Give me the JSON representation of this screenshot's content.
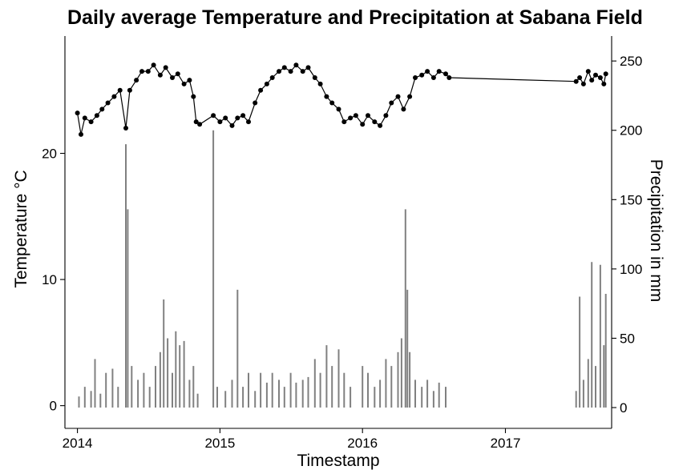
{
  "chart_data": {
    "type": "line",
    "title": "Daily average Temperature and Precipitation at Sabana Field",
    "xlabel": "Timestamp",
    "ylabel": "Temperature °C",
    "y2label": "Precipitation in mm",
    "x_ticks": [
      "2014",
      "2015",
      "2016",
      "2017"
    ],
    "y_ticks": [
      0,
      10,
      20
    ],
    "y2_ticks": [
      0,
      50,
      100,
      150,
      200,
      250
    ],
    "xlim": [
      "2013-11-30",
      "2017-09-30"
    ],
    "ylim": [
      -1.8,
      29.3
    ],
    "y2lim": [
      -15,
      268
    ],
    "grid": false,
    "legend": "none",
    "colors": {
      "temperature": "#000000",
      "precipitation": "#808080"
    },
    "series": [
      {
        "type": "line",
        "axis": "left",
        "points": [
          [
            "2014-01-01",
            23.2
          ],
          [
            "2014-01-10",
            21.5
          ],
          [
            "2014-01-20",
            22.8
          ],
          [
            "2014-02-05",
            22.5
          ],
          [
            "2014-02-20",
            23.0
          ],
          [
            "2014-03-05",
            23.5
          ],
          [
            "2014-03-20",
            24.0
          ],
          [
            "2014-04-05",
            24.5
          ],
          [
            "2014-04-20",
            25.0
          ],
          [
            "2014-05-05",
            22.0
          ],
          [
            "2014-05-15",
            25.0
          ],
          [
            "2014-06-01",
            25.8
          ],
          [
            "2014-06-15",
            26.5
          ],
          [
            "2014-07-01",
            26.5
          ],
          [
            "2014-07-15",
            27.0
          ],
          [
            "2014-08-01",
            26.2
          ],
          [
            "2014-08-15",
            26.8
          ],
          [
            "2014-09-01",
            26.0
          ],
          [
            "2014-09-15",
            26.3
          ],
          [
            "2014-10-01",
            25.5
          ],
          [
            "2014-10-15",
            25.8
          ],
          [
            "2014-10-25",
            24.5
          ],
          [
            "2014-11-01",
            22.5
          ],
          [
            "2014-11-10",
            22.3
          ],
          [
            "2014-12-15",
            23.0
          ],
          [
            "2015-01-01",
            22.5
          ],
          [
            "2015-01-15",
            22.8
          ],
          [
            "2015-02-01",
            22.2
          ],
          [
            "2015-02-15",
            22.8
          ],
          [
            "2015-03-01",
            23.0
          ],
          [
            "2015-03-15",
            22.5
          ],
          [
            "2015-04-01",
            24.0
          ],
          [
            "2015-04-15",
            25.0
          ],
          [
            "2015-05-01",
            25.5
          ],
          [
            "2015-05-15",
            26.0
          ],
          [
            "2015-06-01",
            26.5
          ],
          [
            "2015-06-15",
            26.8
          ],
          [
            "2015-07-01",
            26.5
          ],
          [
            "2015-07-15",
            27.0
          ],
          [
            "2015-08-01",
            26.5
          ],
          [
            "2015-08-15",
            26.8
          ],
          [
            "2015-09-01",
            26.0
          ],
          [
            "2015-09-15",
            25.5
          ],
          [
            "2015-10-01",
            24.5
          ],
          [
            "2015-10-15",
            24.0
          ],
          [
            "2015-11-01",
            23.5
          ],
          [
            "2015-11-15",
            22.5
          ],
          [
            "2015-12-01",
            22.8
          ],
          [
            "2015-12-15",
            23.0
          ],
          [
            "2016-01-01",
            22.3
          ],
          [
            "2016-01-15",
            23.0
          ],
          [
            "2016-02-01",
            22.5
          ],
          [
            "2016-02-15",
            22.2
          ],
          [
            "2016-03-01",
            23.0
          ],
          [
            "2016-03-15",
            24.0
          ],
          [
            "2016-04-01",
            24.5
          ],
          [
            "2016-04-15",
            23.5
          ],
          [
            "2016-05-01",
            24.5
          ],
          [
            "2016-05-15",
            26.0
          ],
          [
            "2016-06-01",
            26.2
          ],
          [
            "2016-06-15",
            26.5
          ],
          [
            "2016-07-01",
            26.0
          ],
          [
            "2016-07-15",
            26.5
          ],
          [
            "2016-08-01",
            26.3
          ],
          [
            "2016-08-10",
            26.0
          ],
          [
            "2017-07-01",
            25.7
          ],
          [
            "2017-07-10",
            26.0
          ],
          [
            "2017-07-20",
            25.5
          ],
          [
            "2017-08-01",
            26.5
          ],
          [
            "2017-08-10",
            25.8
          ],
          [
            "2017-08-20",
            26.2
          ],
          [
            "2017-09-01",
            26.0
          ],
          [
            "2017-09-10",
            25.5
          ],
          [
            "2017-09-15",
            26.3
          ]
        ]
      },
      {
        "type": "bar",
        "axis": "right",
        "points": [
          [
            "2014-01-05",
            8
          ],
          [
            "2014-01-20",
            15
          ],
          [
            "2014-02-05",
            12
          ],
          [
            "2014-02-15",
            35
          ],
          [
            "2014-03-01",
            10
          ],
          [
            "2014-03-15",
            25
          ],
          [
            "2014-04-01",
            28
          ],
          [
            "2014-04-15",
            15
          ],
          [
            "2014-05-05",
            190
          ],
          [
            "2014-05-10",
            143
          ],
          [
            "2014-05-20",
            30
          ],
          [
            "2014-06-05",
            20
          ],
          [
            "2014-06-20",
            25
          ],
          [
            "2014-07-05",
            15
          ],
          [
            "2014-07-20",
            30
          ],
          [
            "2014-08-01",
            40
          ],
          [
            "2014-08-10",
            78
          ],
          [
            "2014-08-20",
            50
          ],
          [
            "2014-09-01",
            25
          ],
          [
            "2014-09-10",
            55
          ],
          [
            "2014-09-20",
            45
          ],
          [
            "2014-10-01",
            48
          ],
          [
            "2014-10-15",
            20
          ],
          [
            "2014-10-25",
            30
          ],
          [
            "2014-11-05",
            10
          ],
          [
            "2014-12-15",
            200
          ],
          [
            "2014-12-25",
            15
          ],
          [
            "2015-01-15",
            12
          ],
          [
            "2015-02-01",
            20
          ],
          [
            "2015-02-15",
            85
          ],
          [
            "2015-03-01",
            15
          ],
          [
            "2015-03-15",
            25
          ],
          [
            "2015-04-01",
            12
          ],
          [
            "2015-04-15",
            25
          ],
          [
            "2015-05-01",
            18
          ],
          [
            "2015-05-15",
            25
          ],
          [
            "2015-06-01",
            20
          ],
          [
            "2015-06-15",
            15
          ],
          [
            "2015-07-01",
            25
          ],
          [
            "2015-07-15",
            18
          ],
          [
            "2015-08-01",
            20
          ],
          [
            "2015-08-15",
            22
          ],
          [
            "2015-09-01",
            35
          ],
          [
            "2015-09-15",
            25
          ],
          [
            "2015-10-01",
            45
          ],
          [
            "2015-10-15",
            30
          ],
          [
            "2015-11-01",
            42
          ],
          [
            "2015-11-15",
            25
          ],
          [
            "2015-12-01",
            15
          ],
          [
            "2016-01-01",
            30
          ],
          [
            "2016-01-15",
            25
          ],
          [
            "2016-02-01",
            15
          ],
          [
            "2016-02-15",
            20
          ],
          [
            "2016-03-01",
            35
          ],
          [
            "2016-03-15",
            30
          ],
          [
            "2016-04-01",
            40
          ],
          [
            "2016-04-10",
            50
          ],
          [
            "2016-04-20",
            143
          ],
          [
            "2016-04-25",
            85
          ],
          [
            "2016-05-01",
            40
          ],
          [
            "2016-05-15",
            20
          ],
          [
            "2016-06-01",
            15
          ],
          [
            "2016-06-15",
            20
          ],
          [
            "2016-07-01",
            12
          ],
          [
            "2016-07-15",
            18
          ],
          [
            "2016-08-01",
            15
          ],
          [
            "2017-07-01",
            12
          ],
          [
            "2017-07-10",
            80
          ],
          [
            "2017-07-20",
            20
          ],
          [
            "2017-08-01",
            35
          ],
          [
            "2017-08-10",
            105
          ],
          [
            "2017-08-20",
            30
          ],
          [
            "2017-09-01",
            103
          ],
          [
            "2017-09-10",
            45
          ],
          [
            "2017-09-15",
            82
          ]
        ]
      }
    ]
  }
}
